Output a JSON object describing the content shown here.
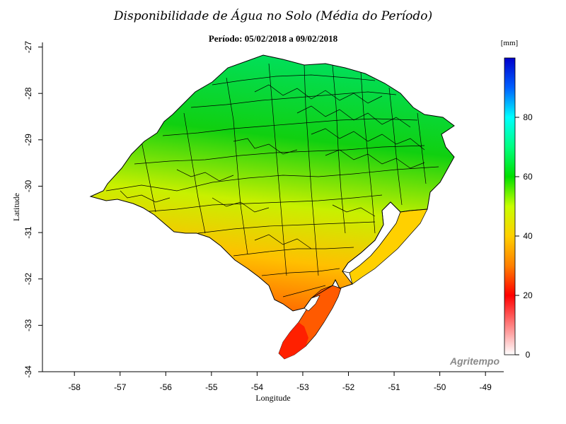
{
  "title": "Disponibilidade de Água no Solo (Média do Período)",
  "subtitle": "Período: 05/02/2018 a 09/02/2018",
  "x_axis": {
    "label": "Longitude",
    "ticks": [
      "-58",
      "-57",
      "-56",
      "-55",
      "-54",
      "-53",
      "-52",
      "-51",
      "-50",
      "-49"
    ],
    "range": [
      -58.7,
      -48.6
    ]
  },
  "y_axis": {
    "label": "Latitude",
    "ticks": [
      "-27",
      "-28",
      "-29",
      "-30",
      "-31",
      "-32",
      "-33",
      "-34"
    ],
    "range": [
      -34,
      -26.9
    ]
  },
  "legend": {
    "unit": "[mm]",
    "ticks": [
      "0",
      "20",
      "40",
      "60",
      "80"
    ],
    "range": [
      0,
      100
    ],
    "colors": [
      "#ffffff",
      "#ff0000",
      "#ff8000",
      "#ffd000",
      "#c8ff00",
      "#00e000",
      "#00ff80",
      "#00ffff",
      "#0060ff",
      "#0000cc"
    ]
  },
  "map_colors": {
    "south": "#ff2000",
    "southwest": "#ffc000",
    "center": "#c8f000",
    "north": "#10d010",
    "northeast": "#00e060",
    "lagoon": "#ffffff",
    "border": "#000000"
  },
  "brand": "Agritempo"
}
